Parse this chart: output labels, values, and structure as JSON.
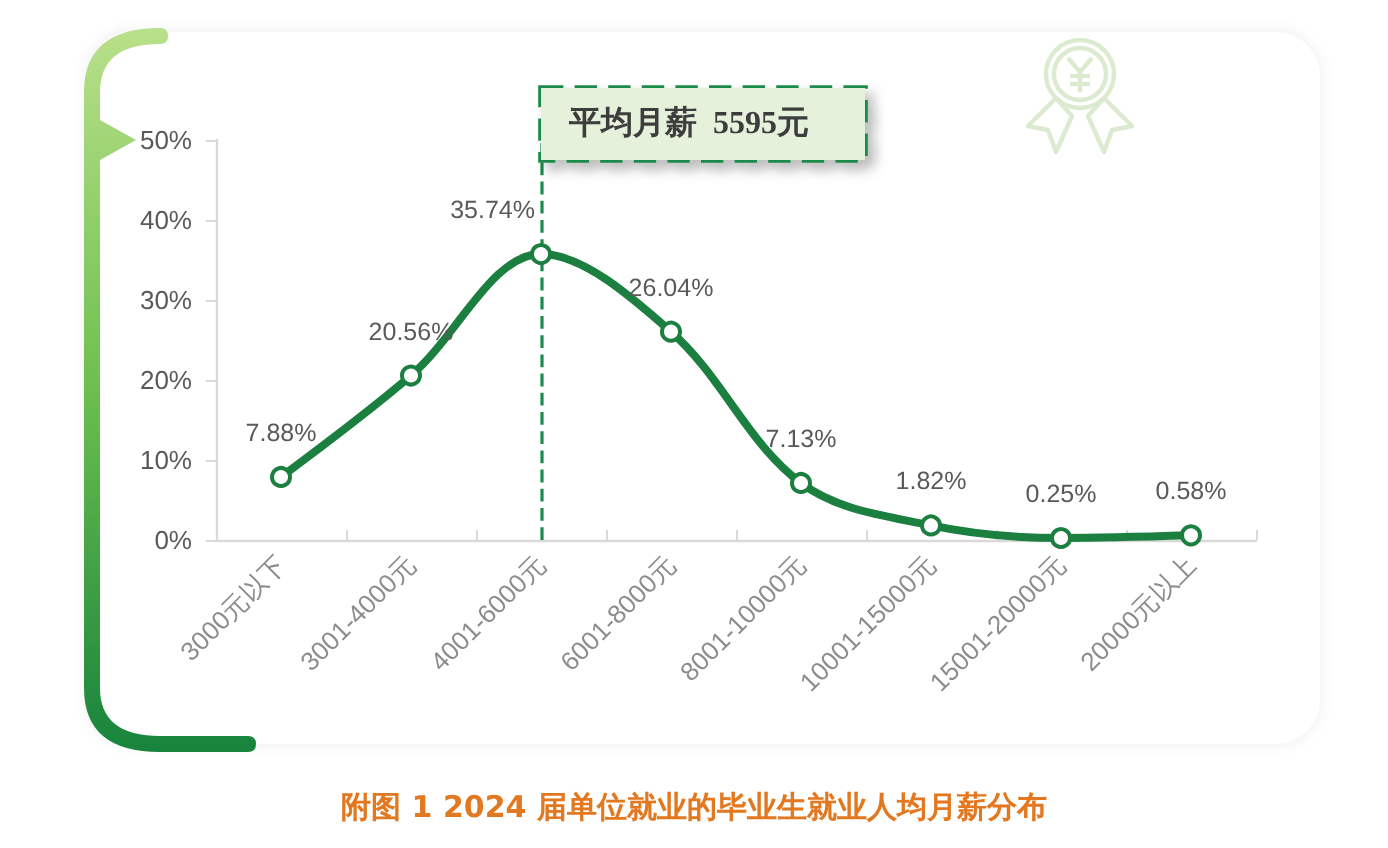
{
  "chart_data": {
    "type": "line",
    "title": "附图 1 2024 届单位就业的毕业生就业人均月薪分布",
    "categories": [
      "3000元以下",
      "3001-4000元",
      "4001-6000元",
      "6001-8000元",
      "8001-10000元",
      "10001-15000元",
      "15001-20000元",
      "20000元以上"
    ],
    "series": [
      {
        "color": "#1b7f40",
        "values": [
          7.88,
          20.56,
          35.74,
          26.04,
          7.13,
          1.82,
          0.25,
          0.58
        ],
        "value_labels": [
          "7.88%",
          "20.56%",
          "35.74%",
          "26.04%",
          "7.13%",
          "1.82%",
          "0.25%",
          "0.58%"
        ]
      }
    ],
    "ylim": [
      0,
      50
    ],
    "yticks": [
      {
        "value": 0,
        "label": "0%"
      },
      {
        "value": 10,
        "label": "10%"
      },
      {
        "value": 20,
        "label": "20%"
      },
      {
        "value": 30,
        "label": "30%"
      },
      {
        "value": 40,
        "label": "40%"
      },
      {
        "value": 50,
        "label": "50%"
      }
    ],
    "ref_lines": [
      {
        "axis": "x",
        "value": "4001-6000元",
        "label": "平均月薪  5595元",
        "color": "#1b8a4a",
        "line_style": "dashed"
      }
    ],
    "marker": "circle",
    "line_style": "solid",
    "grid": false
  }
}
